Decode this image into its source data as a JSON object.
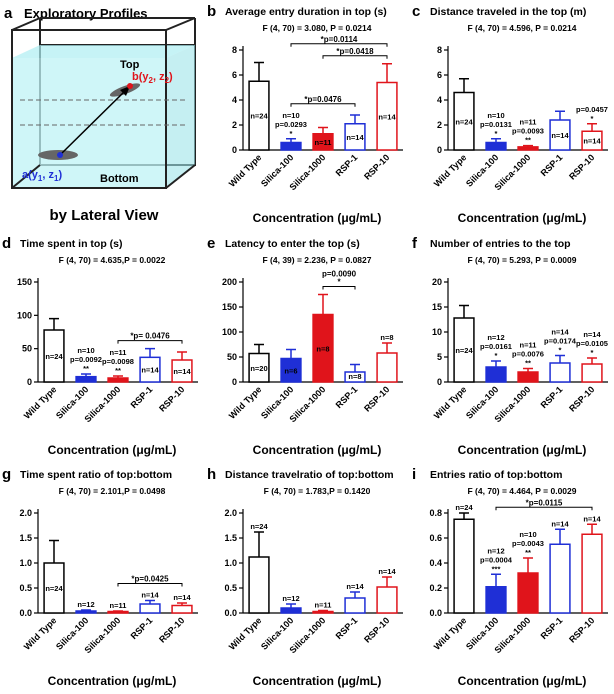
{
  "diagram": {
    "panel": "a",
    "title": "Exploratory Profiles",
    "top_label": "Top",
    "bottom_label": "Bottom",
    "point_b_label": [
      "b(y",
      "2",
      ", z",
      "2",
      ")"
    ],
    "point_a_label": [
      "a(y",
      "1",
      ", z",
      "1",
      ")"
    ],
    "caption": "by Lateral View"
  },
  "chart_data": [
    {
      "type": "bar",
      "panel": "b",
      "title": "Average entry duration in top (s)",
      "subtitle": "F (4, 70) = 3.080, P = 0.0214",
      "xlabel": "Concentration (μg/mL)",
      "categories": [
        "Wild Type",
        "Silica-100",
        "Silica-1000",
        "RSP-1",
        "RSP-10"
      ],
      "values": [
        5.5,
        0.6,
        1.3,
        2.1,
        5.4
      ],
      "errors": [
        1.5,
        0.3,
        0.5,
        0.7,
        1.5
      ],
      "colors": [
        "#000000",
        "#1f2fd6",
        "#e0141b",
        "#1f2fd6",
        "#e0141b"
      ],
      "filled": [
        false,
        true,
        true,
        false,
        false
      ],
      "ylim": [
        0,
        8
      ],
      "yticks": [
        0,
        2,
        4,
        6,
        8
      ],
      "inside_labels": [
        "n=24",
        null,
        "n=11",
        "n=14",
        "n=14"
      ],
      "above_labels": [
        [],
        [
          "n=10",
          "p=0.0293",
          "*"
        ],
        [],
        [],
        []
      ],
      "brackets": [
        {
          "from": "Silica-100",
          "to": "RSP-1",
          "labels": [
            "*p=0.0476"
          ]
        },
        {
          "from": "Silica-1000",
          "to": "RSP-10",
          "labels": [
            "*p=0.0418"
          ]
        },
        {
          "from": "Silica-100",
          "to": "RSP-10",
          "labels": [
            "*p=0.0114"
          ]
        }
      ]
    },
    {
      "type": "bar",
      "panel": "c",
      "title": "Distance traveled in the top (m)",
      "subtitle": "F (4, 70) = 4.596, P = 0.0214",
      "xlabel": "Concentration (μg/mL)",
      "categories": [
        "Wild Type",
        "Silica-100",
        "Silica-1000",
        "RSP-1",
        "RSP-10"
      ],
      "values": [
        4.6,
        0.6,
        0.25,
        2.4,
        1.5
      ],
      "errors": [
        1.1,
        0.3,
        0.1,
        0.7,
        0.6
      ],
      "colors": [
        "#000000",
        "#1f2fd6",
        "#e0141b",
        "#1f2fd6",
        "#e0141b"
      ],
      "filled": [
        false,
        true,
        true,
        false,
        false
      ],
      "ylim": [
        0,
        8
      ],
      "yticks": [
        0,
        2,
        4,
        6,
        8
      ],
      "inside_labels": [
        "n=24",
        null,
        null,
        "n=14",
        "n=14"
      ],
      "above_labels": [
        [],
        [
          "n=10",
          "p=0.0131",
          "*"
        ],
        [
          "n=11",
          "p=0.0093",
          "**"
        ],
        [],
        [
          "p=0.0457",
          "*"
        ]
      ],
      "brackets": []
    },
    {
      "type": "bar",
      "panel": "d",
      "title": "Time spent in top (s)",
      "subtitle": "F (4, 70) = 4.635,P = 0.0022",
      "xlabel": "Concentration (μg/mL)",
      "categories": [
        "Wild Type",
        "Silica-100",
        "Silica-1000",
        "RSP-1",
        "RSP-10"
      ],
      "values": [
        78,
        8,
        6,
        37,
        33
      ],
      "errors": [
        17,
        4,
        3,
        13,
        12
      ],
      "colors": [
        "#000000",
        "#1f2fd6",
        "#e0141b",
        "#1f2fd6",
        "#e0141b"
      ],
      "filled": [
        false,
        true,
        true,
        false,
        false
      ],
      "ylim": [
        0,
        150
      ],
      "yticks": [
        0,
        50,
        100,
        150
      ],
      "inside_labels": [
        "n=24",
        null,
        null,
        "n=14",
        "n=14"
      ],
      "above_labels": [
        [],
        [
          "n=10",
          "p=0.0092",
          "**"
        ],
        [
          "n=11",
          "p=0.0098",
          "**"
        ],
        [],
        []
      ],
      "brackets": [
        {
          "from": "Silica-1000",
          "to": "RSP-10",
          "labels": [
            "*p= 0.0476"
          ]
        }
      ]
    },
    {
      "type": "bar",
      "panel": "e",
      "title": "Latency to enter the top (s)",
      "subtitle": "F (4, 39) = 2.236, P = 0.0827",
      "xlabel": "Concentration (μg/mL)",
      "categories": [
        "Wild Type",
        "Silica-100",
        "Silica-1000",
        "RSP-1",
        "RSP-10"
      ],
      "values": [
        57,
        47,
        135,
        20,
        58
      ],
      "errors": [
        18,
        18,
        40,
        15,
        20
      ],
      "colors": [
        "#000000",
        "#1f2fd6",
        "#e0141b",
        "#1f2fd6",
        "#e0141b"
      ],
      "filled": [
        false,
        true,
        true,
        false,
        false
      ],
      "ylim": [
        0,
        200
      ],
      "yticks": [
        0,
        50,
        100,
        150,
        200
      ],
      "inside_labels": [
        "n=20",
        "n=6",
        "n=8",
        "n=8",
        null
      ],
      "above_labels": [
        [],
        [],
        [],
        [],
        [
          "n=8"
        ]
      ],
      "brackets": [
        {
          "from": "Silica-1000",
          "to": "RSP-1",
          "labels": [
            "p=0.0090",
            "*"
          ]
        }
      ]
    },
    {
      "type": "bar",
      "panel": "f",
      "title": "Number of entries to the top",
      "subtitle": "F (4, 70) = 5.293, P = 0.0009",
      "xlabel": "Concentration (μg/mL)",
      "categories": [
        "Wild Type",
        "Silica-100",
        "Silica-1000",
        "RSP-1",
        "RSP-10"
      ],
      "values": [
        12.8,
        3,
        2,
        3.8,
        3.6
      ],
      "errors": [
        2.5,
        1.2,
        0.7,
        1.5,
        1.2
      ],
      "colors": [
        "#000000",
        "#1f2fd6",
        "#e0141b",
        "#1f2fd6",
        "#e0141b"
      ],
      "filled": [
        false,
        true,
        true,
        false,
        false
      ],
      "ylim": [
        0,
        20
      ],
      "yticks": [
        0,
        5,
        10,
        15,
        20
      ],
      "inside_labels": [
        "n=24",
        null,
        null,
        null,
        null
      ],
      "above_labels": [
        [],
        [
          "n=12",
          "p=0.0161",
          "*"
        ],
        [
          "n=11",
          "p=0.0076",
          "**"
        ],
        [
          "n=14",
          "p=0.0174",
          "*"
        ],
        [
          "n=14",
          "p=0.0105",
          "*"
        ]
      ],
      "brackets": []
    },
    {
      "type": "bar",
      "panel": "g",
      "title": "Time spent ratio of top:bottom",
      "subtitle": "F (4, 70) = 2.101,P = 0.0498",
      "xlabel": "Concentration (μg/mL)",
      "categories": [
        "Wild Type",
        "Silica-100",
        "Silica-1000",
        "RSP-1",
        "RSP-10"
      ],
      "values": [
        1.0,
        0.04,
        0.03,
        0.18,
        0.15
      ],
      "errors": [
        0.45,
        0.02,
        0.01,
        0.07,
        0.05
      ],
      "colors": [
        "#000000",
        "#1f2fd6",
        "#e0141b",
        "#1f2fd6",
        "#e0141b"
      ],
      "filled": [
        false,
        true,
        true,
        false,
        false
      ],
      "ylim": [
        0,
        2
      ],
      "yticks": [
        {
          "value": 0,
          "label": "0.0"
        },
        {
          "value": 0.5,
          "label": "0.5"
        },
        {
          "value": 1,
          "label": "1.0"
        },
        {
          "value": 1.5,
          "label": "1.5"
        },
        {
          "value": 2,
          "label": "2.0"
        }
      ],
      "inside_labels": [
        "n=24",
        null,
        null,
        null,
        null
      ],
      "above_labels": [
        [],
        [
          "n=12"
        ],
        [
          "n=11"
        ],
        [
          "n=14"
        ],
        [
          "n=14"
        ]
      ],
      "brackets": [
        {
          "from": "Silica-1000",
          "to": "RSP-10",
          "labels": [
            "*p=0.0425"
          ]
        }
      ]
    },
    {
      "type": "bar",
      "panel": "h",
      "title": "Distance travelratio of top:bottom",
      "subtitle": "F (4, 70) = 1.783,P = 0.1420",
      "xlabel": "Concentration (μg/mL)",
      "categories": [
        "Wild Type",
        "Silica-100",
        "Silica-1000",
        "RSP-1",
        "RSP-10"
      ],
      "values": [
        1.12,
        0.1,
        0.03,
        0.3,
        0.52
      ],
      "errors": [
        0.5,
        0.08,
        0.02,
        0.12,
        0.2
      ],
      "colors": [
        "#000000",
        "#1f2fd6",
        "#e0141b",
        "#1f2fd6",
        "#e0141b"
      ],
      "filled": [
        false,
        true,
        true,
        false,
        false
      ],
      "ylim": [
        0,
        2
      ],
      "yticks": [
        {
          "value": 0,
          "label": "0.0"
        },
        {
          "value": 0.5,
          "label": "0.5"
        },
        {
          "value": 1,
          "label": "1.0"
        },
        {
          "value": 1.5,
          "label": "1.5"
        },
        {
          "value": 2,
          "label": "2.0"
        }
      ],
      "inside_labels": [
        null,
        null,
        null,
        null,
        null
      ],
      "above_labels": [
        [
          "n=24"
        ],
        [
          "n=12"
        ],
        [
          "n=11"
        ],
        [
          "n=14"
        ],
        [
          "n=14"
        ]
      ],
      "brackets": []
    },
    {
      "type": "bar",
      "panel": "i",
      "title": "Entries ratio of top:bottom",
      "subtitle": "F (4, 70) = 4.464, P = 0.0029",
      "xlabel": "Concentration (μg/mL)",
      "categories": [
        "Wild Type",
        "Silica-100",
        "Silica-1000",
        "RSP-1",
        "RSP-10"
      ],
      "values": [
        0.75,
        0.21,
        0.32,
        0.55,
        0.63
      ],
      "errors": [
        0.05,
        0.1,
        0.12,
        0.12,
        0.08
      ],
      "colors": [
        "#000000",
        "#1f2fd6",
        "#e0141b",
        "#1f2fd6",
        "#e0141b"
      ],
      "filled": [
        false,
        true,
        true,
        false,
        false
      ],
      "ylim": [
        0,
        0.8
      ],
      "yticks": [
        {
          "value": 0,
          "label": "0.0"
        },
        {
          "value": 0.2,
          "label": "0.2"
        },
        {
          "value": 0.4,
          "label": "0.4"
        },
        {
          "value": 0.6,
          "label": "0.6"
        },
        {
          "value": 0.8,
          "label": "0.8"
        }
      ],
      "inside_labels": [
        null,
        null,
        null,
        null,
        null
      ],
      "above_labels": [
        [
          "n=24"
        ],
        [
          "n=12",
          "p=0.0004",
          "***"
        ],
        [
          "n=10",
          "p=0.0043",
          "**"
        ],
        [
          "n=14"
        ],
        [
          "n=14"
        ]
      ],
      "brackets": [
        {
          "from": "Silica-100",
          "to": "RSP-10",
          "labels": [
            "*p=0.0115"
          ]
        }
      ]
    }
  ]
}
